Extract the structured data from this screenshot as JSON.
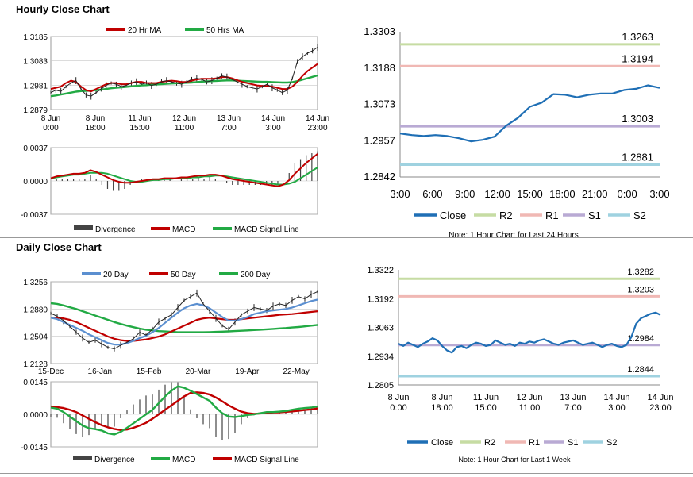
{
  "sections": {
    "hourly_title": "Hourly Close Chart",
    "daily_title": "Daily Close Chart"
  },
  "colors": {
    "close": "#1f6fb5",
    "ma_red": "#c00000",
    "ma_green": "#22aa44",
    "ma_blue": "#5b8fd0",
    "r2": "#c6dca3",
    "r1": "#f0b8b4",
    "s1": "#b9aad4",
    "s2": "#9fd2e0",
    "bars": "#444444",
    "price": "#222222"
  },
  "chart_data": [
    {
      "id": "hourly_price",
      "type": "line",
      "title": "Hourly Close Chart",
      "x_ticks": [
        [
          "8 Jun",
          "0:00"
        ],
        [
          "8 Jun",
          "18:00"
        ],
        [
          "11 Jun",
          "15:00"
        ],
        [
          "12 Jun",
          "11:00"
        ],
        [
          "13 Jun",
          "7:00"
        ],
        [
          "14 Jun",
          "3:00"
        ],
        [
          "14 Jun",
          "23:00"
        ]
      ],
      "y_ticks": [
        "1.3185",
        "1.3083",
        "1.2981",
        "1.2879"
      ],
      "ylim": [
        1.2879,
        1.3185
      ],
      "legend": [
        "20 Hr MA",
        "50 Hrs MA"
      ],
      "series": [
        {
          "name": "Close",
          "values": [
            1.295,
            1.296,
            1.2955,
            1.2975,
            1.299,
            1.3,
            1.2965,
            1.294,
            1.2935,
            1.295,
            1.2965,
            1.298,
            1.299,
            1.2985,
            1.2975,
            1.298,
            1.299,
            1.2995,
            1.2985,
            1.299,
            1.298,
            1.2985,
            1.2995,
            1.3,
            1.2995,
            1.299,
            1.2985,
            1.2995,
            1.3005,
            1.301,
            1.3005,
            1.2995,
            1.3,
            1.301,
            1.302,
            1.3015,
            1.3005,
            1.2995,
            1.2985,
            1.2975,
            1.297,
            1.2965,
            1.2975,
            1.2985,
            1.297,
            1.296,
            1.295,
            1.296,
            1.301,
            1.308,
            1.31,
            1.3115,
            1.3125,
            1.314
          ]
        },
        {
          "name": "20 Hr MA",
          "values": [
            1.2965,
            1.297,
            1.2975,
            1.299,
            1.3,
            1.2995,
            1.2975,
            1.296,
            1.2955,
            1.2965,
            1.2975,
            1.2985,
            1.299,
            1.299,
            1.2985,
            1.2985,
            1.299,
            1.2995,
            1.2995,
            1.299,
            1.299,
            1.299,
            1.2995,
            1.2998,
            1.3,
            1.2998,
            1.2994,
            1.2995,
            1.3,
            1.3005,
            1.3008,
            1.3008,
            1.3008,
            1.301,
            1.3015,
            1.3015,
            1.301,
            1.3002,
            1.2995,
            1.299,
            1.2985,
            1.298,
            1.2978,
            1.2978,
            1.2975,
            1.297,
            1.2965,
            1.2965,
            1.2975,
            1.2995,
            1.302,
            1.304,
            1.3055,
            1.307
          ]
        },
        {
          "name": "50 Hrs MA",
          "values": [
            1.2935,
            1.2938,
            1.2942,
            1.2946,
            1.295,
            1.2954,
            1.2956,
            1.2957,
            1.2958,
            1.296,
            1.2962,
            1.2965,
            1.2968,
            1.297,
            1.2972,
            1.2974,
            1.2976,
            1.2978,
            1.298,
            1.2981,
            1.2983,
            1.2984,
            1.2985,
            1.2987,
            1.2988,
            1.2989,
            1.299,
            1.2991,
            1.2992,
            1.2994,
            1.2996,
            1.2997,
            1.2998,
            1.2999,
            1.3,
            1.3001,
            1.3001,
            1.3,
            1.2999,
            1.2998,
            1.2997,
            1.2996,
            1.2995,
            1.2995,
            1.2994,
            1.2993,
            1.2992,
            1.2992,
            1.2994,
            1.2998,
            1.3004,
            1.301,
            1.3016,
            1.3022
          ]
        }
      ]
    },
    {
      "id": "hourly_macd",
      "type": "line",
      "y_ticks": [
        "0.0037",
        "0.0000",
        "-0.0037"
      ],
      "ylim": [
        -0.0037,
        0.0037
      ],
      "legend": [
        "Divergence",
        "MACD",
        "MACD Signal Line"
      ],
      "series": [
        {
          "name": "MACD",
          "values": [
            0.0003,
            0.0005,
            0.0006,
            0.0007,
            0.0008,
            0.0008,
            0.0009,
            0.0012,
            0.001,
            0.0007,
            0.0004,
            0.0001,
            -0.0001,
            -0.0002,
            -0.0002,
            -0.0001,
            0.0,
            0.0001,
            0.0002,
            0.0002,
            0.0003,
            0.0003,
            0.0003,
            0.0004,
            0.0004,
            0.0005,
            0.0006,
            0.0006,
            0.0007,
            0.0007,
            0.0006,
            0.0004,
            0.0002,
            0.0001,
            0.0,
            -0.0001,
            -0.0002,
            -0.0003,
            -0.0004,
            -0.0005,
            -0.0006,
            -0.0004,
            0.0001,
            0.0008,
            0.0014,
            0.002,
            0.0025,
            0.003
          ]
        },
        {
          "name": "MACD Signal Line",
          "values": [
            0.0003,
            0.0004,
            0.0005,
            0.0006,
            0.0007,
            0.0007,
            0.0008,
            0.0009,
            0.0009,
            0.0009,
            0.0008,
            0.0006,
            0.0004,
            0.0002,
            0.0,
            -0.0001,
            -0.0001,
            0.0,
            0.0001,
            0.0001,
            0.0002,
            0.0002,
            0.0003,
            0.0003,
            0.0003,
            0.0004,
            0.0004,
            0.0005,
            0.0005,
            0.0006,
            0.0006,
            0.0005,
            0.0004,
            0.0003,
            0.0002,
            0.0001,
            0.0,
            -0.0001,
            -0.0002,
            -0.0003,
            -0.0004,
            -0.0004,
            -0.0003,
            -0.0001,
            0.0003,
            0.0007,
            0.0011,
            0.0015
          ]
        }
      ]
    },
    {
      "id": "hourly_pivot",
      "type": "line",
      "note": "Note: 1 Hour Chart for Last 24 Hours",
      "x_ticks": [
        "3:00",
        "6:00",
        "9:00",
        "12:00",
        "15:00",
        "18:00",
        "21:00",
        "0:00",
        "3:00"
      ],
      "y_ticks": [
        "1.3303",
        "1.3188",
        "1.3073",
        "1.2957",
        "1.2842"
      ],
      "ylim": [
        1.2842,
        1.3303
      ],
      "levels": [
        {
          "name": "R2",
          "label": "1.3263",
          "value": 1.3263
        },
        {
          "name": "R1",
          "label": "1.3194",
          "value": 1.3194
        },
        {
          "name": "S1",
          "label": "1.3003",
          "value": 1.3003
        },
        {
          "name": "S2",
          "label": "1.2881",
          "value": 1.2881
        }
      ],
      "legend": [
        "Close",
        "R2",
        "R1",
        "S1",
        "S2"
      ],
      "series": [
        {
          "name": "Close",
          "values": [
            1.298,
            1.2975,
            1.2972,
            1.2975,
            1.2972,
            1.2965,
            1.2955,
            1.296,
            1.297,
            1.3005,
            1.303,
            1.3065,
            1.3078,
            1.3105,
            1.3103,
            1.3095,
            1.3103,
            1.3107,
            1.3107,
            1.3118,
            1.3122,
            1.3133,
            1.3125
          ]
        }
      ]
    },
    {
      "id": "daily_price",
      "type": "line",
      "title": "Daily Close Chart",
      "x_ticks": [
        "15-Dec",
        "16-Jan",
        "15-Feb",
        "20-Mar",
        "19-Apr",
        "22-May"
      ],
      "y_ticks": [
        "1.3256",
        "1.2880",
        "1.2504",
        "1.2128"
      ],
      "ylim": [
        1.2128,
        1.3256
      ],
      "legend": [
        "20 Day",
        "50 Day",
        "200 Day"
      ],
      "series": [
        {
          "name": "Close",
          "values": [
            1.282,
            1.278,
            1.272,
            1.264,
            1.256,
            1.248,
            1.242,
            1.245,
            1.24,
            1.235,
            1.233,
            1.238,
            1.242,
            1.247,
            1.256,
            1.252,
            1.26,
            1.27,
            1.275,
            1.28,
            1.29,
            1.3,
            1.305,
            1.31,
            1.295,
            1.285,
            1.275,
            1.265,
            1.26,
            1.27,
            1.28,
            1.285,
            1.29,
            1.288,
            1.286,
            1.292,
            1.295,
            1.293,
            1.3,
            1.305,
            1.302,
            1.308,
            1.312
          ]
        },
        {
          "name": "20 Day",
          "values": [
            1.276,
            1.274,
            1.27,
            1.266,
            1.262,
            1.258,
            1.253,
            1.249,
            1.245,
            1.241,
            1.239,
            1.239,
            1.241,
            1.244,
            1.248,
            1.251,
            1.256,
            1.262,
            1.269,
            1.276,
            1.283,
            1.289,
            1.293,
            1.295,
            1.293,
            1.289,
            1.283,
            1.277,
            1.272,
            1.272,
            1.274,
            1.277,
            1.281,
            1.283,
            1.285,
            1.286,
            1.287,
            1.288,
            1.29,
            1.293,
            1.296,
            1.299,
            1.301
          ]
        },
        {
          "name": "50 Day",
          "values": [
            1.276,
            1.276,
            1.275,
            1.273,
            1.27,
            1.266,
            1.262,
            1.258,
            1.254,
            1.25,
            1.247,
            1.245,
            1.244,
            1.244,
            1.245,
            1.246,
            1.248,
            1.25,
            1.253,
            1.257,
            1.261,
            1.265,
            1.269,
            1.273,
            1.275,
            1.276,
            1.275,
            1.274,
            1.273,
            1.273,
            1.274,
            1.275,
            1.276,
            1.277,
            1.278,
            1.279,
            1.28,
            1.2805,
            1.281,
            1.282,
            1.283,
            1.284,
            1.285
          ]
        },
        {
          "name": "200 Day",
          "values": [
            1.296,
            1.295,
            1.293,
            1.2905,
            1.288,
            1.285,
            1.282,
            1.279,
            1.276,
            1.273,
            1.27,
            1.2675,
            1.265,
            1.263,
            1.261,
            1.2595,
            1.2585,
            1.2575,
            1.257,
            1.2565,
            1.256,
            1.256,
            1.256,
            1.256,
            1.256,
            1.2562,
            1.2565,
            1.2568,
            1.2572,
            1.2576,
            1.258,
            1.2585,
            1.259,
            1.2595,
            1.26,
            1.2605,
            1.2612,
            1.2618,
            1.2625,
            1.2632,
            1.264,
            1.265,
            1.266
          ]
        }
      ]
    },
    {
      "id": "daily_macd",
      "type": "line",
      "y_ticks": [
        "0.0145",
        "0.0000",
        "-0.0145"
      ],
      "ylim": [
        -0.0145,
        0.0145
      ],
      "legend": [
        "Divergence",
        "MACD",
        "MACD Signal Line"
      ],
      "series": [
        {
          "name": "MACD",
          "values": [
            0.003,
            0.0025,
            0.001,
            -0.001,
            -0.003,
            -0.005,
            -0.0062,
            -0.0066,
            -0.0072,
            -0.0085,
            -0.009,
            -0.0078,
            -0.006,
            -0.004,
            -0.002,
            0.0,
            0.002,
            0.005,
            0.008,
            0.0105,
            0.0125,
            0.0118,
            0.0105,
            0.009,
            0.0075,
            0.006,
            0.003,
            0.0005,
            -0.001,
            -0.0012,
            -0.0008,
            -0.0003,
            0.0,
            0.0005,
            0.001,
            0.001,
            0.0012,
            0.0015,
            0.002,
            0.0025,
            0.0028,
            0.003,
            0.0035
          ]
        },
        {
          "name": "MACD Signal Line",
          "values": [
            0.0035,
            0.0032,
            0.0028,
            0.002,
            0.001,
            -0.0005,
            -0.002,
            -0.0035,
            -0.0048,
            -0.0058,
            -0.0065,
            -0.007,
            -0.0068,
            -0.006,
            -0.005,
            -0.0038,
            -0.002,
            0.0,
            0.002,
            0.004,
            0.006,
            0.008,
            0.0095,
            0.0098,
            0.0095,
            0.0088,
            0.0075,
            0.0058,
            0.004,
            0.0025,
            0.0012,
            0.0005,
            0.0002,
            0.0004,
            0.0006,
            0.0008,
            0.0009,
            0.0011,
            0.0013,
            0.0016,
            0.0019,
            0.0022,
            0.0026
          ]
        }
      ]
    },
    {
      "id": "daily_pivot",
      "type": "line",
      "note": "Note: 1 Hour Chart for Last 1 Week",
      "x_ticks": [
        [
          "8 Jun",
          "0:00"
        ],
        [
          "8 Jun",
          "18:00"
        ],
        [
          "11 Jun",
          "15:00"
        ],
        [
          "12 Jun",
          "11:00"
        ],
        [
          "13 Jun",
          "7:00"
        ],
        [
          "14 Jun",
          "3:00"
        ],
        [
          "14 Jun",
          "23:00"
        ]
      ],
      "y_ticks": [
        "1.3322",
        "1.3192",
        "1.3063",
        "1.2934",
        "1.2805"
      ],
      "ylim": [
        1.2805,
        1.3322
      ],
      "levels": [
        {
          "name": "R2",
          "label": "1.3282",
          "value": 1.3282
        },
        {
          "name": "R1",
          "label": "1.3203",
          "value": 1.3203
        },
        {
          "name": "S1",
          "label": "1.2984",
          "value": 1.2984
        },
        {
          "name": "S2",
          "label": "1.2844",
          "value": 1.2844
        }
      ],
      "legend": [
        "Close",
        "R2",
        "R1",
        "S1",
        "S2"
      ],
      "series": [
        {
          "name": "Close",
          "values": [
            1.299,
            1.298,
            1.2995,
            1.2985,
            1.2975,
            1.299,
            1.3,
            1.3015,
            1.3005,
            1.298,
            1.296,
            1.295,
            1.2975,
            1.298,
            1.297,
            1.2985,
            1.2995,
            1.299,
            1.298,
            1.2985,
            1.3005,
            1.2995,
            1.2985,
            1.299,
            1.298,
            1.2995,
            1.299,
            1.3,
            1.2995,
            1.3005,
            1.301,
            1.3,
            1.299,
            1.2985,
            1.2995,
            1.3,
            1.3005,
            1.2995,
            1.2985,
            1.299,
            1.2995,
            1.2985,
            1.2975,
            1.2985,
            1.299,
            1.298,
            1.2975,
            1.2985,
            1.302,
            1.308,
            1.3105,
            1.3115,
            1.3125,
            1.313,
            1.312
          ]
        }
      ]
    }
  ]
}
